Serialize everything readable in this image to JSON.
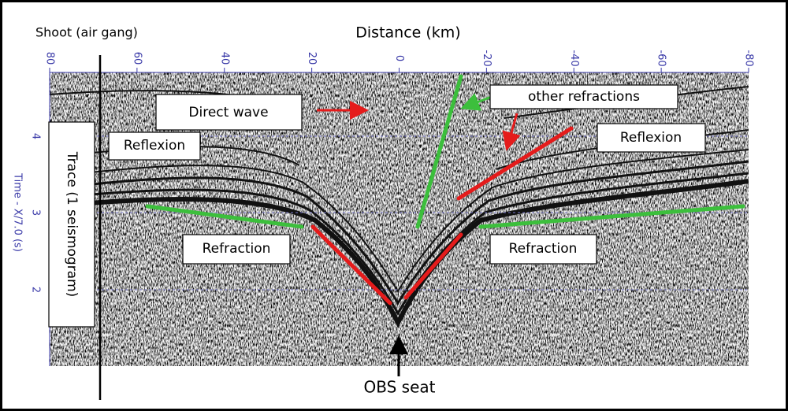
{
  "header": {
    "shoot": "Shoot (air gang)",
    "distance": "Distance  (km)"
  },
  "axes": {
    "x_ticks": [
      "80",
      "60",
      "40",
      "20",
      "0",
      "-20",
      "-40",
      "-60",
      "-80"
    ],
    "y_ticks": [
      "4",
      "3",
      "2"
    ],
    "y_label": "Time - X/7.0 (s)"
  },
  "annotations": {
    "direct_wave": "Direct wave",
    "other_refractions": "other refractions",
    "reflexion_left": "Reflexion",
    "reflexion_right": "Reflexion",
    "refraction_left": "Refraction",
    "refraction_right": "Refraction",
    "trace": "Trace (1 seismogram)",
    "obs_seat": "OBS seat"
  }
}
